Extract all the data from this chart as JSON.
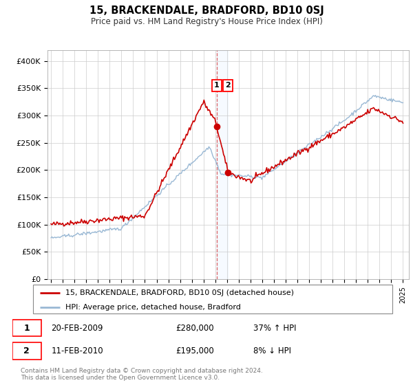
{
  "title": "15, BRACKENDALE, BRADFORD, BD10 0SJ",
  "subtitle": "Price paid vs. HM Land Registry's House Price Index (HPI)",
  "legend_line1": "15, BRACKENDALE, BRADFORD, BD10 0SJ (detached house)",
  "legend_line2": "HPI: Average price, detached house, Bradford",
  "sale1_date": "20-FEB-2009",
  "sale1_price": "£280,000",
  "sale1_hpi": "37% ↑ HPI",
  "sale2_date": "11-FEB-2010",
  "sale2_price": "£195,000",
  "sale2_hpi": "8% ↓ HPI",
  "footer": "Contains HM Land Registry data © Crown copyright and database right 2024.\nThis data is licensed under the Open Government Licence v3.0.",
  "red_color": "#cc0000",
  "blue_color": "#99b8d4",
  "shade_color": "#ddeeff",
  "ylim": [
    0,
    420000
  ],
  "xlim_start": 1994.7,
  "xlim_end": 2025.5,
  "sale1_year": 2009.12,
  "sale1_value": 280000,
  "sale2_year": 2010.08,
  "sale2_value": 195000,
  "yticks": [
    0,
    50000,
    100000,
    150000,
    200000,
    250000,
    300000,
    350000,
    400000
  ],
  "ytick_labels": [
    "£0",
    "£50K",
    "£100K",
    "£150K",
    "£200K",
    "£250K",
    "£300K",
    "£350K",
    "£400K"
  ]
}
